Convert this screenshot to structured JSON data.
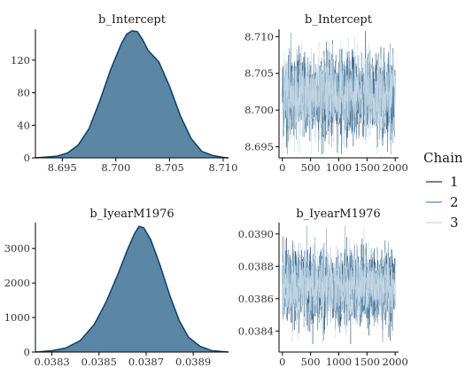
{
  "chart_data": [
    {
      "type": "area",
      "title": "b_Intercept",
      "xlabel": "",
      "ylabel": "",
      "xlim": [
        8.6925,
        8.7105
      ],
      "ylim": [
        0,
        158
      ],
      "x_ticks": [
        {
          "value": 8.695,
          "label": "8.695"
        },
        {
          "value": 8.7,
          "label": "8.700"
        },
        {
          "value": 8.705,
          "label": "8.705"
        },
        {
          "value": 8.71,
          "label": "8.710"
        }
      ],
      "y_ticks": [
        {
          "value": 0,
          "label": "0"
        },
        {
          "value": 40,
          "label": "40"
        },
        {
          "value": 80,
          "label": "80"
        },
        {
          "value": 120,
          "label": "120"
        }
      ],
      "fill_color": "#5b87a5",
      "line_color": "#0d3f66",
      "series": [
        {
          "x": [
            8.6925,
            8.6935,
            8.6945,
            8.6955,
            8.6965,
            8.6975,
            8.6985,
            8.6995,
            8.7005,
            8.701,
            8.7015,
            8.702,
            8.7025,
            8.703,
            8.704,
            8.705,
            8.706,
            8.707,
            8.708,
            8.709,
            8.71,
            8.7105
          ],
          "y": [
            0,
            1,
            2,
            6,
            16,
            36,
            70,
            108,
            140,
            152,
            156,
            155,
            145,
            132,
            118,
            88,
            52,
            24,
            8,
            3,
            0.5,
            0
          ]
        }
      ]
    },
    {
      "type": "line",
      "title": "b_Intercept",
      "xlabel": "",
      "ylabel": "",
      "xlim": [
        -60,
        2060
      ],
      "ylim": [
        8.6935,
        8.711
      ],
      "x_ticks": [
        {
          "value": 0,
          "label": "0"
        },
        {
          "value": 500,
          "label": "500"
        },
        {
          "value": 1000,
          "label": "1000"
        },
        {
          "value": 1500,
          "label": "1500"
        },
        {
          "value": 2000,
          "label": "2000"
        }
      ],
      "y_ticks": [
        {
          "value": 8.695,
          "label": "8.695"
        },
        {
          "value": 8.7,
          "label": "8.700"
        },
        {
          "value": 8.705,
          "label": "8.705"
        },
        {
          "value": 8.71,
          "label": "8.710"
        }
      ],
      "center": 8.702,
      "trace_sd": 0.0027,
      "trace_min": 8.694,
      "trace_max": 8.7108,
      "n_iter": 2000,
      "series": [
        {
          "name": "1",
          "color": "#0e3b61"
        },
        {
          "name": "2",
          "color": "#5d88aa"
        },
        {
          "name": "3",
          "color": "#c5d9e8"
        }
      ]
    },
    {
      "type": "area",
      "title": "b_IyearM1976",
      "xlabel": "",
      "ylabel": "",
      "xlim": [
        0.03823,
        0.03905
      ],
      "ylim": [
        0,
        3750
      ],
      "x_ticks": [
        {
          "value": 0.0383,
          "label": "0.0383"
        },
        {
          "value": 0.0385,
          "label": "0.0385"
        },
        {
          "value": 0.0387,
          "label": "0.0387"
        },
        {
          "value": 0.0389,
          "label": "0.0389"
        }
      ],
      "y_ticks": [
        {
          "value": 0,
          "label": "0"
        },
        {
          "value": 1000,
          "label": "1000"
        },
        {
          "value": 2000,
          "label": "2000"
        },
        {
          "value": 3000,
          "label": "3000"
        }
      ],
      "fill_color": "#5b87a5",
      "line_color": "#0d3f66",
      "series": [
        {
          "x": [
            0.03823,
            0.0383,
            0.03836,
            0.03842,
            0.03848,
            0.03853,
            0.03858,
            0.03862,
            0.03865,
            0.03867,
            0.03869,
            0.03872,
            0.03876,
            0.0388,
            0.03884,
            0.03888,
            0.03893,
            0.03898,
            0.03905
          ],
          "y": [
            0,
            40,
            120,
            330,
            800,
            1450,
            2250,
            2950,
            3420,
            3640,
            3600,
            3250,
            2500,
            1650,
            920,
            430,
            160,
            40,
            0
          ]
        }
      ]
    },
    {
      "type": "line",
      "title": "b_IyearM1976",
      "xlabel": "",
      "ylabel": "",
      "xlim": [
        -60,
        2060
      ],
      "ylim": [
        0.03827,
        0.03907
      ],
      "x_ticks": [
        {
          "value": 0,
          "label": "0"
        },
        {
          "value": 500,
          "label": "500"
        },
        {
          "value": 1000,
          "label": "1000"
        },
        {
          "value": 1500,
          "label": "1500"
        },
        {
          "value": 2000,
          "label": "2000"
        }
      ],
      "y_ticks": [
        {
          "value": 0.0384,
          "label": "0.0384"
        },
        {
          "value": 0.0386,
          "label": "0.0386"
        },
        {
          "value": 0.0388,
          "label": "0.0388"
        },
        {
          "value": 0.039,
          "label": "0.0390"
        }
      ],
      "center": 0.03867,
      "trace_sd": 0.00011,
      "trace_min": 0.03832,
      "trace_max": 0.03905,
      "n_iter": 2000,
      "series": [
        {
          "name": "1",
          "color": "#0e3b61"
        },
        {
          "name": "2",
          "color": "#5d88aa"
        },
        {
          "name": "3",
          "color": "#c5d9e8"
        }
      ]
    }
  ],
  "legend": {
    "title": "Chain",
    "placement": "right",
    "items": [
      {
        "label": "1",
        "color": "#0e3b61"
      },
      {
        "label": "2",
        "color": "#5d88aa"
      },
      {
        "label": "3",
        "color": "#c5d9e8"
      }
    ]
  }
}
